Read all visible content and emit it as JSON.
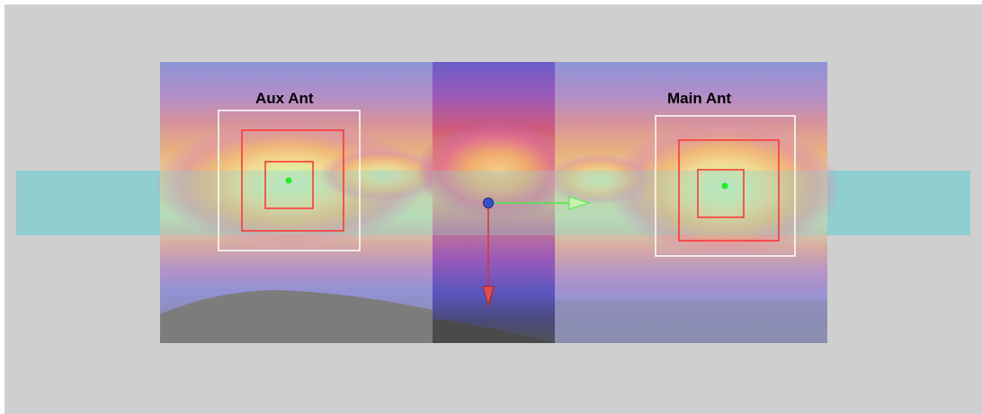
{
  "scene": {
    "background_color": "#cfcfcf",
    "ground_strip_color": "#8fcfcf",
    "left_antenna": {
      "label": "Aux Ant",
      "outer_frame_color": "#ffffff",
      "inner_frame_color": "#ff3030",
      "center_marker_color": "#22ee22"
    },
    "right_antenna": {
      "label": "Main Ant",
      "outer_frame_color": "#ffffff",
      "inner_frame_color": "#ff3030",
      "center_marker_color": "#22ee22"
    },
    "gizmo": {
      "origin_color": "#3a4fd0",
      "x_axis_color": "#44ee44",
      "y_axis_color": "#e23030"
    }
  }
}
